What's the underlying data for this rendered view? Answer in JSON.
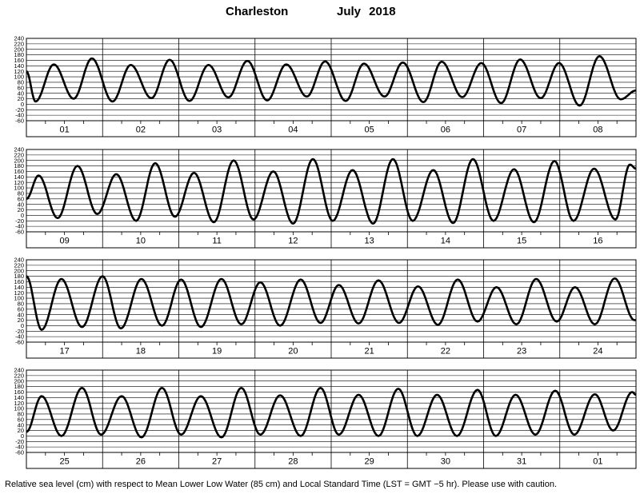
{
  "title": {
    "station": "Charleston",
    "period": "July 2018"
  },
  "caption": "Relative sea level (cm) with respect to Mean Lower Low Water (85 cm) and Local Standard Time (LST = GMT −5 hr). Please use with caution.",
  "chart_data": [
    {
      "type": "line",
      "ylim": [
        -60,
        240
      ],
      "y_ticks": [
        240,
        220,
        200,
        180,
        160,
        140,
        120,
        100,
        80,
        60,
        40,
        20,
        0,
        -20,
        -40,
        -60
      ],
      "grid": true,
      "day_labels": [
        "01",
        "02",
        "03",
        "04",
        "05",
        "06",
        "07",
        "08"
      ],
      "series": [
        {
          "x_days": [
            0,
            0.12,
            0.36,
            0.62,
            0.86,
            1.13,
            1.37,
            1.64,
            1.88,
            2.14,
            2.39,
            2.65,
            2.9,
            3.16,
            3.41,
            3.68,
            3.92,
            4.19,
            4.43,
            4.7,
            4.94,
            5.21,
            5.45,
            5.72,
            5.97,
            6.23,
            6.48,
            6.75,
            6.99,
            7.26,
            7.52,
            7.8,
            8.0
          ],
          "y": [
            120,
            10,
            145,
            20,
            167,
            10,
            143,
            22,
            162,
            12,
            143,
            25,
            158,
            14,
            145,
            28,
            156,
            12,
            148,
            28,
            152,
            8,
            155,
            26,
            150,
            4,
            163,
            22,
            150,
            -5,
            175,
            18,
            50
          ]
        }
      ]
    },
    {
      "type": "line",
      "ylim": [
        -60,
        240
      ],
      "y_ticks": [
        240,
        220,
        200,
        180,
        160,
        140,
        120,
        100,
        80,
        60,
        40,
        20,
        0,
        -20,
        -40,
        -60
      ],
      "grid": true,
      "day_labels": [
        "09",
        "10",
        "11",
        "12",
        "13",
        "14",
        "15",
        "16"
      ],
      "series": [
        {
          "x_days": [
            0,
            0.16,
            0.41,
            0.67,
            0.93,
            1.18,
            1.44,
            1.69,
            1.95,
            2.2,
            2.46,
            2.72,
            2.98,
            3.24,
            3.5,
            3.76,
            4.02,
            4.28,
            4.55,
            4.81,
            5.07,
            5.34,
            5.6,
            5.86,
            6.13,
            6.4,
            6.66,
            6.93,
            7.18,
            7.45,
            7.73,
            7.92,
            8.0
          ],
          "y": [
            60,
            145,
            -10,
            180,
            5,
            150,
            -20,
            190,
            -5,
            155,
            -25,
            200,
            -15,
            160,
            -30,
            205,
            -20,
            165,
            -30,
            205,
            -20,
            165,
            -28,
            205,
            -20,
            168,
            -25,
            198,
            -20,
            170,
            -15,
            185,
            170
          ]
        }
      ]
    },
    {
      "type": "line",
      "ylim": [
        -60,
        240
      ],
      "y_ticks": [
        240,
        220,
        200,
        180,
        160,
        140,
        120,
        100,
        80,
        60,
        40,
        20,
        0,
        -20,
        -40,
        -60
      ],
      "grid": true,
      "day_labels": [
        "17",
        "18",
        "19",
        "20",
        "21",
        "22",
        "23",
        "24"
      ],
      "series": [
        {
          "x_days": [
            0,
            0.2,
            0.46,
            0.73,
            1.0,
            1.24,
            1.51,
            1.78,
            2.03,
            2.29,
            2.56,
            2.82,
            3.07,
            3.33,
            3.6,
            3.86,
            4.1,
            4.36,
            4.62,
            4.89,
            5.14,
            5.4,
            5.66,
            5.92,
            6.17,
            6.43,
            6.69,
            6.96,
            7.2,
            7.46,
            7.72,
            7.98,
            8.0
          ],
          "y": [
            180,
            -15,
            170,
            -5,
            180,
            -10,
            170,
            0,
            168,
            -5,
            170,
            5,
            158,
            0,
            168,
            10,
            148,
            8,
            165,
            10,
            143,
            3,
            168,
            15,
            140,
            5,
            170,
            15,
            140,
            5,
            172,
            20,
            20
          ]
        }
      ]
    },
    {
      "type": "line",
      "ylim": [
        -60,
        240
      ],
      "y_ticks": [
        240,
        220,
        200,
        180,
        160,
        140,
        120,
        100,
        80,
        60,
        40,
        20,
        0,
        -20,
        -40,
        -60
      ],
      "grid": true,
      "day_labels": [
        "25",
        "26",
        "27",
        "28",
        "29",
        "30",
        "31",
        "01"
      ],
      "series": [
        {
          "x_days": [
            0,
            0.2,
            0.46,
            0.73,
            0.98,
            1.25,
            1.51,
            1.78,
            2.03,
            2.29,
            2.56,
            2.82,
            3.07,
            3.33,
            3.6,
            3.86,
            4.1,
            4.36,
            4.62,
            4.88,
            5.13,
            5.39,
            5.65,
            5.92,
            6.16,
            6.42,
            6.68,
            6.94,
            7.19,
            7.46,
            7.7,
            7.95,
            8.0
          ],
          "y": [
            15,
            145,
            0,
            175,
            5,
            145,
            -5,
            175,
            5,
            145,
            -5,
            175,
            5,
            148,
            0,
            175,
            5,
            150,
            0,
            172,
            0,
            150,
            0,
            168,
            0,
            150,
            5,
            165,
            5,
            152,
            20,
            160,
            150
          ]
        }
      ]
    }
  ]
}
